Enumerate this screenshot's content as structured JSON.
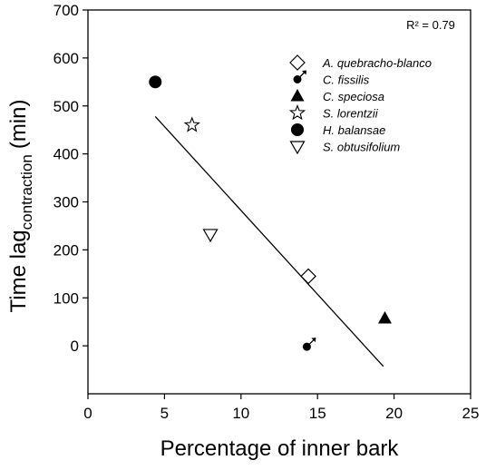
{
  "chart_data": {
    "type": "scatter",
    "xlabel": "Percentage of inner bark",
    "ylabel_main": "Time lag",
    "ylabel_sub": "contraction",
    "ylabel_unit": "(min)",
    "xlim": [
      0,
      25
    ],
    "ylim": [
      -100,
      700
    ],
    "xticks": [
      "0",
      "5",
      "10",
      "15",
      "20",
      "25"
    ],
    "yticks": [
      "0",
      "100",
      "200",
      "300",
      "400",
      "500",
      "600",
      "700"
    ],
    "grid": false,
    "legend_position": "top-right",
    "annotation": "R² = 0.79",
    "series": [
      {
        "name": "A. quebracho-blanco",
        "marker": "diamond-open",
        "x": [
          14.4
        ],
        "y": [
          145
        ]
      },
      {
        "name": "C. fissilis",
        "marker": "male-symbol",
        "x": [
          14.3
        ],
        "y": [
          -2
        ]
      },
      {
        "name": "C. speciosa",
        "marker": "triangle-filled",
        "x": [
          19.4
        ],
        "y": [
          57
        ]
      },
      {
        "name": "S. lorentzii",
        "marker": "star-open",
        "x": [
          6.8
        ],
        "y": [
          460
        ]
      },
      {
        "name": "H. balansae",
        "marker": "circle-filled",
        "x": [
          4.4
        ],
        "y": [
          550
        ]
      },
      {
        "name": "S. obtusifolium",
        "marker": "triangle-down-open",
        "x": [
          8.0
        ],
        "y": [
          232
        ]
      }
    ],
    "regression_line": {
      "x": [
        4.4,
        19.3
      ],
      "y": [
        478,
        -43
      ]
    }
  }
}
